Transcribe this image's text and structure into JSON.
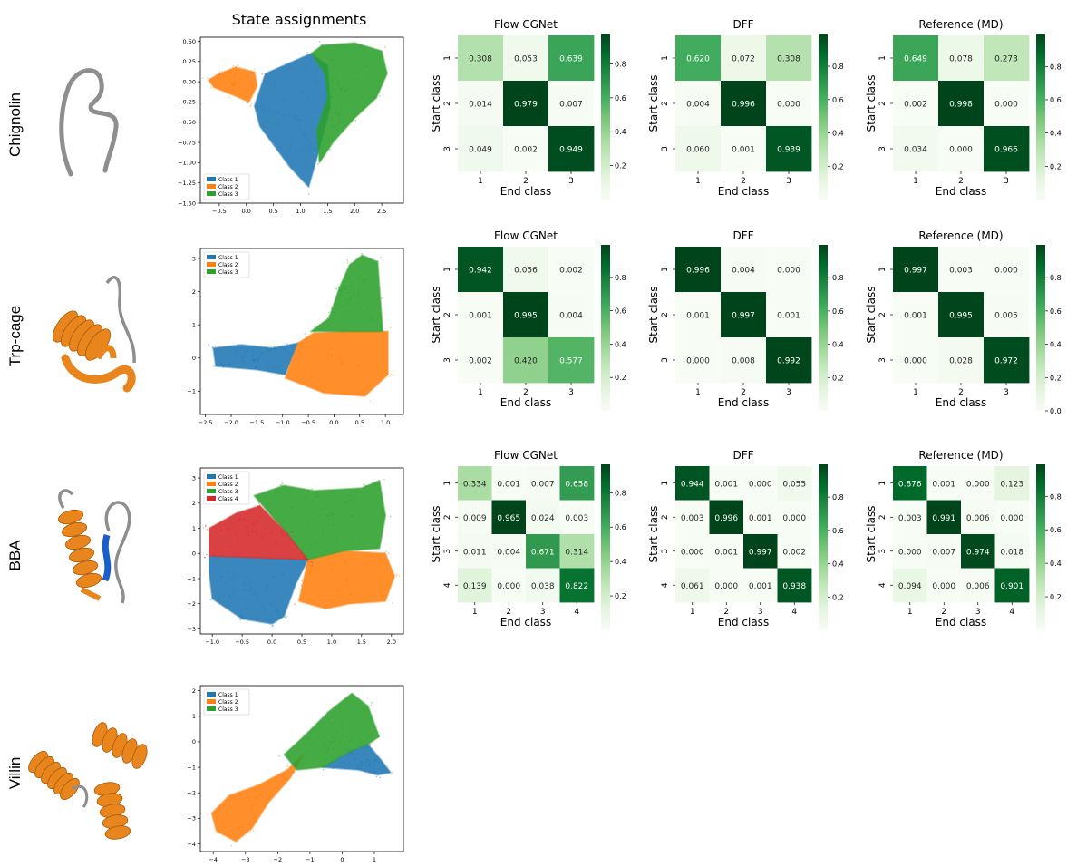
{
  "figure": {
    "column_title": "State assignments"
  },
  "matrix_axes": {
    "xlabel": "End class",
    "ylabel": "Start class"
  },
  "colors": {
    "class_1": "#1f77b4",
    "class_2": "#ff7f0e",
    "class_3": "#2ca02c",
    "class_4": "#d62728",
    "protein_helix": "#e8851c",
    "protein_coil": "#8e8e8e",
    "protein_strand": "#1a5fc9"
  },
  "chart_data": [
    {
      "type": "scatter",
      "protein": "Chignolin",
      "legend": [
        "Class 1",
        "Class 2",
        "Class 3"
      ],
      "legend_position": "lower-left",
      "xlim": [
        -0.85,
        2.9
      ],
      "ylim": [
        -1.5,
        0.55
      ],
      "xticks": [
        -0.5,
        0.0,
        0.5,
        1.0,
        1.5,
        2.0,
        2.5
      ],
      "yticks": [
        0.5,
        0.25,
        0.0,
        -0.25,
        -0.5,
        -0.75,
        -1.0,
        -1.25,
        -1.5
      ],
      "xtick_labels": [
        "−0.5",
        "0.0",
        "0.5",
        "1.0",
        "1.5",
        "2.0",
        "2.5"
      ],
      "ytick_labels": [
        "0.50",
        "0.25",
        "0.00",
        "−0.25",
        "−0.50",
        "−0.75",
        "−1.00",
        "−1.25",
        "−1.50"
      ],
      "regions": [
        {
          "class": "Class 1",
          "polygon": [
            [
              0.15,
              -0.3
            ],
            [
              0.35,
              0.1
            ],
            [
              1.2,
              0.35
            ],
            [
              1.5,
              0.2
            ],
            [
              1.55,
              -0.3
            ],
            [
              1.3,
              -0.95
            ],
            [
              1.15,
              -1.3
            ],
            [
              0.8,
              -1.05
            ],
            [
              0.25,
              -0.55
            ]
          ]
        },
        {
          "class": "Class 2",
          "polygon": [
            [
              -0.7,
              0.02
            ],
            [
              -0.5,
              0.1
            ],
            [
              -0.2,
              0.18
            ],
            [
              0.15,
              0.12
            ],
            [
              0.2,
              -0.05
            ],
            [
              0.05,
              -0.25
            ],
            [
              -0.3,
              -0.15
            ],
            [
              -0.6,
              -0.07
            ]
          ]
        },
        {
          "class": "Class 3",
          "polygon": [
            [
              1.2,
              0.35
            ],
            [
              1.4,
              0.45
            ],
            [
              2.0,
              0.48
            ],
            [
              2.5,
              0.38
            ],
            [
              2.6,
              0.1
            ],
            [
              2.4,
              -0.2
            ],
            [
              2.0,
              -0.45
            ],
            [
              1.6,
              -0.75
            ],
            [
              1.35,
              -1.0
            ],
            [
              1.3,
              -0.6
            ],
            [
              1.5,
              -0.2
            ],
            [
              1.45,
              0.1
            ]
          ]
        }
      ]
    },
    {
      "type": "heatmap",
      "protein": "Chignolin",
      "method": "Flow CGNet",
      "labels": [
        "1",
        "2",
        "3"
      ],
      "values": [
        [
          0.308,
          0.053,
          0.639
        ],
        [
          0.014,
          0.979,
          0.007
        ],
        [
          0.049,
          0.002,
          0.949
        ]
      ],
      "colorbar_ticks": [
        0.2,
        0.4,
        0.6,
        0.8
      ],
      "colorbar_range": [
        0.0,
        0.979
      ]
    },
    {
      "type": "heatmap",
      "protein": "Chignolin",
      "method": "DFF",
      "labels": [
        "1",
        "2",
        "3"
      ],
      "values": [
        [
          0.62,
          0.072,
          0.308
        ],
        [
          0.004,
          0.996,
          0.0
        ],
        [
          0.06,
          0.001,
          0.939
        ]
      ],
      "colorbar_ticks": [
        0.2,
        0.4,
        0.6,
        0.8
      ],
      "colorbar_range": [
        0.0,
        0.996
      ]
    },
    {
      "type": "heatmap",
      "protein": "Chignolin",
      "method": "Reference (MD)",
      "labels": [
        "1",
        "2",
        "3"
      ],
      "values": [
        [
          0.649,
          0.078,
          0.273
        ],
        [
          0.002,
          0.998,
          0.0
        ],
        [
          0.034,
          0.0,
          0.966
        ]
      ],
      "colorbar_ticks": [
        0.2,
        0.4,
        0.6,
        0.8
      ],
      "colorbar_range": [
        0.0,
        0.998
      ]
    },
    {
      "type": "scatter",
      "protein": "Trp-cage",
      "legend": [
        "Class 1",
        "Class 2",
        "Class 3"
      ],
      "legend_position": "upper-left",
      "xlim": [
        -2.6,
        1.35
      ],
      "ylim": [
        -1.7,
        3.3
      ],
      "xticks": [
        -2.5,
        -2.0,
        -1.5,
        -1.0,
        -0.5,
        0.0,
        0.5,
        1.0
      ],
      "yticks": [
        3,
        2,
        1,
        0,
        -1
      ],
      "xtick_labels": [
        "−2.5",
        "−2.0",
        "−1.5",
        "−1.0",
        "−0.5",
        "0.0",
        "0.5",
        "1.0"
      ],
      "ytick_labels": [
        "3",
        "2",
        "1",
        "0",
        "−1"
      ],
      "regions": [
        {
          "class": "Class 1",
          "polygon": [
            [
              -2.35,
              0.3
            ],
            [
              -1.8,
              0.4
            ],
            [
              -1.2,
              0.3
            ],
            [
              -0.7,
              0.45
            ],
            [
              -0.95,
              -0.5
            ],
            [
              -1.5,
              -0.35
            ],
            [
              -2.3,
              -0.25
            ]
          ]
        },
        {
          "class": "Class 2",
          "polygon": [
            [
              -0.95,
              -0.6
            ],
            [
              -0.7,
              0.45
            ],
            [
              -0.4,
              0.75
            ],
            [
              0.2,
              0.8
            ],
            [
              1.05,
              0.8
            ],
            [
              1.05,
              -0.5
            ],
            [
              0.6,
              -1.15
            ],
            [
              -0.2,
              -1.05
            ]
          ]
        },
        {
          "class": "Class 3",
          "polygon": [
            [
              -0.45,
              0.8
            ],
            [
              -0.1,
              1.2
            ],
            [
              0.1,
              2.1
            ],
            [
              0.3,
              2.8
            ],
            [
              0.55,
              3.1
            ],
            [
              0.85,
              2.9
            ],
            [
              0.9,
              1.8
            ],
            [
              0.95,
              0.8
            ]
          ]
        }
      ]
    },
    {
      "type": "heatmap",
      "protein": "Trp-cage",
      "method": "Flow CGNet",
      "labels": [
        "1",
        "2",
        "3"
      ],
      "values": [
        [
          0.942,
          0.056,
          0.002
        ],
        [
          0.001,
          0.995,
          0.004
        ],
        [
          0.002,
          0.42,
          0.577
        ]
      ],
      "colorbar_ticks": [
        0.2,
        0.4,
        0.6,
        0.8
      ],
      "colorbar_range": [
        0.0,
        0.995
      ]
    },
    {
      "type": "heatmap",
      "protein": "Trp-cage",
      "method": "DFF",
      "labels": [
        "1",
        "2",
        "3"
      ],
      "values": [
        [
          0.996,
          0.004,
          0.0
        ],
        [
          0.001,
          0.997,
          0.001
        ],
        [
          0.0,
          0.008,
          0.992
        ]
      ],
      "colorbar_ticks": [
        0.2,
        0.4,
        0.6,
        0.8
      ],
      "colorbar_range": [
        0.0,
        0.997
      ]
    },
    {
      "type": "heatmap",
      "protein": "Trp-cage",
      "method": "Reference (MD)",
      "labels": [
        "1",
        "2",
        "3"
      ],
      "values": [
        [
          0.997,
          0.003,
          0.0
        ],
        [
          0.001,
          0.995,
          0.005
        ],
        [
          0.0,
          0.028,
          0.972
        ]
      ],
      "colorbar_ticks": [
        0.0,
        0.2,
        0.4,
        0.6,
        0.8
      ],
      "colorbar_range": [
        0.0,
        0.997
      ]
    },
    {
      "type": "scatter",
      "protein": "BBA",
      "legend": [
        "Class 1",
        "Class 2",
        "Class 3",
        "Class 4"
      ],
      "legend_position": "upper-left",
      "xlim": [
        -1.2,
        2.2
      ],
      "ylim": [
        -3.2,
        3.4
      ],
      "xticks": [
        -1.0,
        -0.5,
        0.0,
        0.5,
        1.0,
        1.5,
        2.0
      ],
      "yticks": [
        3,
        2,
        1,
        0,
        -1,
        -2,
        -3
      ],
      "xtick_labels": [
        "−1.0",
        "−0.5",
        "0.0",
        "0.5",
        "1.0",
        "1.5",
        "2.0"
      ],
      "ytick_labels": [
        "3",
        "2",
        "1",
        "0",
        "−1",
        "−2",
        "−3"
      ],
      "regions": [
        {
          "class": "Class 1",
          "polygon": [
            [
              -1.05,
              -0.1
            ],
            [
              0.6,
              -0.25
            ],
            [
              0.4,
              -1.2
            ],
            [
              0.2,
              -2.5
            ],
            [
              0.0,
              -2.8
            ],
            [
              -0.5,
              -2.6
            ],
            [
              -1.0,
              -1.8
            ],
            [
              -1.05,
              -0.8
            ]
          ]
        },
        {
          "class": "Class 2",
          "polygon": [
            [
              0.6,
              -0.25
            ],
            [
              1.2,
              0.1
            ],
            [
              1.9,
              0.0
            ],
            [
              2.05,
              -0.9
            ],
            [
              1.9,
              -1.9
            ],
            [
              1.3,
              -2.0
            ],
            [
              0.9,
              -2.2
            ],
            [
              0.45,
              -1.9
            ]
          ]
        },
        {
          "class": "Class 3",
          "polygon": [
            [
              -0.3,
              2.3
            ],
            [
              0.2,
              2.7
            ],
            [
              0.7,
              2.5
            ],
            [
              1.5,
              2.6
            ],
            [
              1.8,
              2.9
            ],
            [
              1.9,
              1.5
            ],
            [
              1.8,
              0.2
            ],
            [
              1.2,
              0.1
            ],
            [
              0.6,
              -0.25
            ],
            [
              0.25,
              0.8
            ]
          ]
        },
        {
          "class": "Class 4",
          "polygon": [
            [
              -1.05,
              1.0
            ],
            [
              -0.6,
              1.6
            ],
            [
              -0.2,
              1.9
            ],
            [
              0.25,
              0.8
            ],
            [
              0.6,
              -0.25
            ],
            [
              -1.05,
              -0.1
            ]
          ]
        }
      ]
    },
    {
      "type": "heatmap",
      "protein": "BBA",
      "method": "Flow CGNet",
      "labels": [
        "1",
        "2",
        "3",
        "4"
      ],
      "values": [
        [
          0.334,
          0.001,
          0.007,
          0.658
        ],
        [
          0.009,
          0.965,
          0.024,
          0.003
        ],
        [
          0.011,
          0.004,
          0.671,
          0.314
        ],
        [
          0.139,
          0.0,
          0.038,
          0.822
        ]
      ],
      "colorbar_ticks": [
        0.2,
        0.4,
        0.6,
        0.8
      ],
      "colorbar_range": [
        0.0,
        0.965
      ]
    },
    {
      "type": "heatmap",
      "protein": "BBA",
      "method": "DFF",
      "labels": [
        "1",
        "2",
        "3",
        "4"
      ],
      "values": [
        [
          0.944,
          0.001,
          0.0,
          0.055
        ],
        [
          0.003,
          0.996,
          0.001,
          0.0
        ],
        [
          0.0,
          0.001,
          0.997,
          0.002
        ],
        [
          0.061,
          0.0,
          0.001,
          0.938
        ]
      ],
      "colorbar_ticks": [
        0.2,
        0.4,
        0.6,
        0.8
      ],
      "colorbar_range": [
        0.0,
        0.997
      ]
    },
    {
      "type": "heatmap",
      "protein": "BBA",
      "method": "Reference (MD)",
      "labels": [
        "1",
        "2",
        "3",
        "4"
      ],
      "values": [
        [
          0.876,
          0.001,
          0.0,
          0.123
        ],
        [
          0.003,
          0.991,
          0.006,
          0.0
        ],
        [
          0.0,
          0.007,
          0.974,
          0.018
        ],
        [
          0.094,
          0.0,
          0.006,
          0.901
        ]
      ],
      "colorbar_ticks": [
        0.2,
        0.4,
        0.6,
        0.8
      ],
      "colorbar_range": [
        0.0,
        0.991
      ]
    },
    {
      "type": "scatter",
      "protein": "Villin",
      "legend": [
        "Class 1",
        "Class 2",
        "Class 3"
      ],
      "legend_position": "upper-left",
      "xlim": [
        -4.4,
        1.9
      ],
      "ylim": [
        -4.3,
        2.2
      ],
      "xticks": [
        -4,
        -3,
        -2,
        -1,
        0,
        1
      ],
      "yticks": [
        2,
        1,
        0,
        -1,
        -2,
        -3,
        -4
      ],
      "xtick_labels": [
        "−4",
        "−3",
        "−2",
        "−1",
        "0",
        "1"
      ],
      "ytick_labels": [
        "2",
        "1",
        "0",
        "−1",
        "−2",
        "−3",
        "−4"
      ],
      "regions": [
        {
          "class": "Class 1",
          "polygon": [
            [
              -0.6,
              -1.0
            ],
            [
              0.2,
              -0.4
            ],
            [
              0.8,
              -0.1
            ],
            [
              1.2,
              -0.7
            ],
            [
              1.5,
              -1.2
            ],
            [
              1.1,
              -1.3
            ],
            [
              0.5,
              -1.1
            ]
          ]
        },
        {
          "class": "Class 2",
          "polygon": [
            [
              -4.05,
              -2.8
            ],
            [
              -3.5,
              -2.1
            ],
            [
              -2.6,
              -1.7
            ],
            [
              -1.7,
              -1.1
            ],
            [
              -1.2,
              -0.5
            ],
            [
              -1.6,
              -1.4
            ],
            [
              -2.3,
              -2.4
            ],
            [
              -2.8,
              -3.4
            ],
            [
              -3.3,
              -3.9
            ],
            [
              -3.9,
              -3.5
            ]
          ]
        },
        {
          "class": "Class 3",
          "polygon": [
            [
              -1.8,
              -0.5
            ],
            [
              -1.2,
              0.2
            ],
            [
              -0.4,
              1.2
            ],
            [
              0.3,
              1.9
            ],
            [
              0.8,
              1.4
            ],
            [
              1.15,
              0.2
            ],
            [
              0.8,
              -0.1
            ],
            [
              0.2,
              -0.4
            ],
            [
              -0.6,
              -1.0
            ],
            [
              -1.4,
              -1.1
            ]
          ]
        }
      ]
    }
  ],
  "row_labels": [
    "Chignolin",
    "Trp-cage",
    "BBA",
    "Villin"
  ]
}
